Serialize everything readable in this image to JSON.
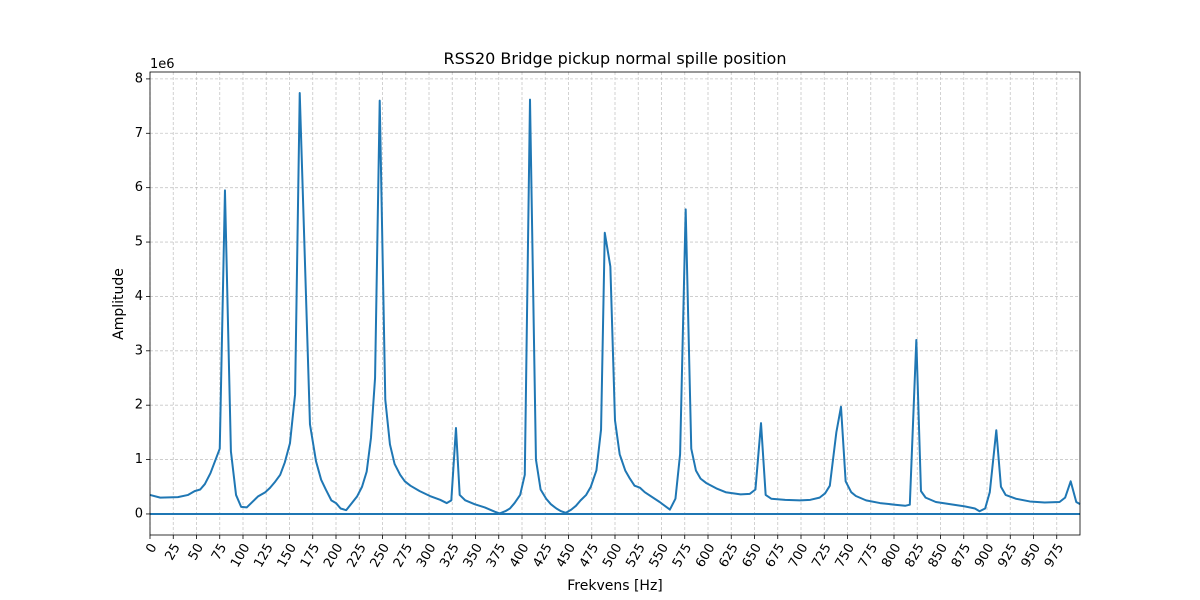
{
  "chart_data": {
    "type": "line",
    "title": "RSS20 Bridge pickup normal spille position",
    "xlabel": "Frekvens [Hz]",
    "ylabel": "Amplitude",
    "y_offset_label": "1e6",
    "color": "#1f77b4",
    "grid": true,
    "hline": 0,
    "x": [
      0,
      11,
      30,
      41,
      48,
      54,
      59,
      65,
      75,
      80.6,
      87,
      92.5,
      98,
      104,
      116,
      124,
      129,
      134,
      140,
      145,
      150.5,
      156,
      161,
      172,
      178.5,
      184,
      189,
      195,
      200,
      205,
      211,
      217,
      222.6,
      228,
      233,
      237.6,
      242,
      247,
      253,
      258,
      263,
      269,
      274,
      280,
      290,
      301,
      312,
      319,
      324,
      329,
      333,
      339,
      349,
      360,
      371,
      376,
      382,
      387,
      392,
      398,
      403,
      408.6,
      415,
      420,
      426,
      431,
      437,
      442,
      447,
      453,
      458,
      463,
      469,
      474,
      480,
      485,
      489,
      495,
      500,
      505,
      511,
      516,
      521,
      527,
      532,
      548,
      559,
      565,
      570,
      576,
      582,
      587,
      592,
      598,
      609,
      619,
      635,
      645,
      651,
      657,
      662,
      668,
      683,
      699,
      710,
      720,
      726,
      731,
      738,
      743,
      748,
      754,
      759,
      770,
      785,
      801,
      812,
      817,
      824,
      829,
      834,
      845,
      860,
      876,
      887,
      892,
      898,
      903,
      910,
      915,
      920,
      931,
      946,
      962,
      978,
      984,
      990,
      996,
      1000
    ],
    "values": [
      350000,
      300000,
      310000,
      350000,
      420000,
      450000,
      550000,
      750000,
      1200000,
      5950000,
      1150000,
      350000,
      130000,
      120000,
      320000,
      400000,
      480000,
      580000,
      720000,
      950000,
      1300000,
      2200000,
      7740000,
      1650000,
      970000,
      630000,
      450000,
      250000,
      200000,
      100000,
      70000,
      200000,
      320000,
      500000,
      780000,
      1400000,
      2500000,
      7600000,
      2100000,
      1280000,
      920000,
      720000,
      600000,
      520000,
      420000,
      330000,
      260000,
      200000,
      250000,
      1580000,
      350000,
      250000,
      180000,
      120000,
      40000,
      10000,
      50000,
      100000,
      200000,
      350000,
      720000,
      7620000,
      1000000,
      450000,
      280000,
      180000,
      100000,
      50000,
      20000,
      80000,
      150000,
      250000,
      350000,
      500000,
      800000,
      1550000,
      5170000,
      4550000,
      1720000,
      1100000,
      800000,
      650000,
      520000,
      480000,
      400000,
      220000,
      80000,
      280000,
      1100000,
      5600000,
      1200000,
      800000,
      650000,
      570000,
      470000,
      400000,
      360000,
      370000,
      450000,
      1670000,
      350000,
      280000,
      260000,
      250000,
      260000,
      300000,
      380000,
      520000,
      1500000,
      1970000,
      600000,
      400000,
      330000,
      250000,
      200000,
      170000,
      150000,
      170000,
      3200000,
      420000,
      300000,
      220000,
      180000,
      140000,
      100000,
      50000,
      100000,
      400000,
      1540000,
      500000,
      350000,
      280000,
      230000,
      210000,
      220000,
      300000,
      600000,
      220000,
      180000
    ],
    "xlim": [
      0,
      1000
    ],
    "xticks": [
      0,
      25,
      50,
      75,
      100,
      125,
      150,
      175,
      200,
      225,
      250,
      275,
      300,
      325,
      350,
      375,
      400,
      425,
      450,
      475,
      500,
      525,
      550,
      575,
      600,
      625,
      650,
      675,
      700,
      725,
      750,
      775,
      800,
      825,
      850,
      875,
      900,
      925,
      950,
      975
    ],
    "ylim": [
      -387000,
      8127000
    ],
    "yticks": [
      0,
      {
        "value": 1000000,
        "label": "1"
      },
      {
        "value": 2000000,
        "label": "2"
      },
      {
        "value": 3000000,
        "label": "3"
      },
      {
        "value": 4000000,
        "label": "4"
      },
      {
        "value": 5000000,
        "label": "5"
      },
      {
        "value": 6000000,
        "label": "6"
      },
      {
        "value": 7000000,
        "label": "7"
      },
      {
        "value": 8000000,
        "label": "8"
      }
    ]
  }
}
